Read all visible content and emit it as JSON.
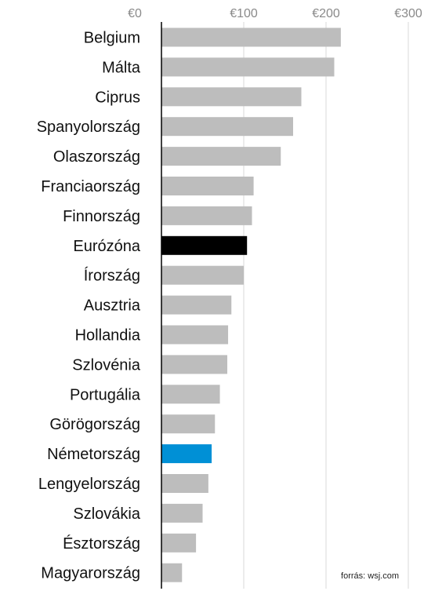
{
  "chart_data": {
    "type": "bar",
    "orientation": "horizontal",
    "categories": [
      "Belgium",
      "Málta",
      "Ciprus",
      "Spanyolország",
      "Olaszország",
      "Franciaország",
      "Finnország",
      "Eurózóna",
      "Írország",
      "Ausztria",
      "Hollandia",
      "Szlovénia",
      "Portugália",
      "Görögország",
      "Németország",
      "Lengyelország",
      "Szlovákia",
      "Észtország",
      "Magyarország"
    ],
    "values": [
      218,
      210,
      170,
      160,
      145,
      112,
      110,
      104,
      100,
      85,
      81,
      80,
      71,
      65,
      61,
      57,
      50,
      42,
      25
    ],
    "xlim": [
      0,
      300
    ],
    "xticks": [
      0,
      100,
      200,
      300
    ],
    "tick_labels": [
      "€0",
      "€100",
      "€200",
      "€300"
    ],
    "grid": true,
    "colors": {
      "default": "#bdbdbd",
      "highlight_eurozone": "#000000",
      "highlight_germany": "#0090d6",
      "gridline": "#d9d9d9",
      "axis": "#000000"
    },
    "bar_colors": [
      "#bdbdbd",
      "#bdbdbd",
      "#bdbdbd",
      "#bdbdbd",
      "#bdbdbd",
      "#bdbdbd",
      "#bdbdbd",
      "#000000",
      "#bdbdbd",
      "#bdbdbd",
      "#bdbdbd",
      "#bdbdbd",
      "#bdbdbd",
      "#bdbdbd",
      "#0090d6",
      "#bdbdbd",
      "#bdbdbd",
      "#bdbdbd",
      "#bdbdbd"
    ],
    "source": "forrás: wsj.com"
  }
}
